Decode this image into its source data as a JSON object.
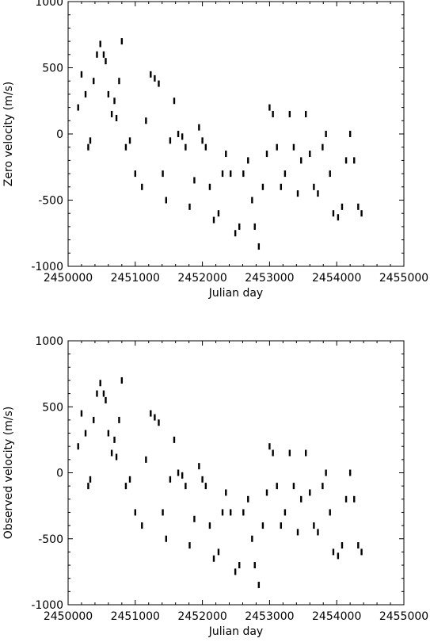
{
  "chart_data": [
    {
      "type": "scatter",
      "xlabel": "Julian day",
      "ylabel": "Zero velocity (m/s)",
      "xlim": [
        2450000,
        2455000
      ],
      "ylim": [
        -1000,
        1000
      ],
      "xticks": [
        "2450000",
        "2451000",
        "2452000",
        "2453000",
        "2454000",
        "2455000"
      ],
      "yticks": [
        "-1000",
        "-500",
        "0",
        "500",
        "1000"
      ],
      "grid": false,
      "legend": "none",
      "marker_color": "#000000",
      "x": [
        2450150,
        2450200,
        2450260,
        2450300,
        2450330,
        2450380,
        2450430,
        2450480,
        2450530,
        2450560,
        2450600,
        2450650,
        2450690,
        2450720,
        2450760,
        2450800,
        2450860,
        2450920,
        2451000,
        2451100,
        2451160,
        2451230,
        2451290,
        2451350,
        2451410,
        2451460,
        2451520,
        2451580,
        2451640,
        2451700,
        2451750,
        2451810,
        2451880,
        2451950,
        2452000,
        2452050,
        2452110,
        2452170,
        2452240,
        2452300,
        2452350,
        2452420,
        2452490,
        2452550,
        2452610,
        2452680,
        2452740,
        2452780,
        2452840,
        2452900,
        2452960,
        2453000,
        2453050,
        2453110,
        2453170,
        2453230,
        2453300,
        2453360,
        2453420,
        2453470,
        2453540,
        2453600,
        2453660,
        2453720,
        2453790,
        2453840,
        2453900,
        2453950,
        2454020,
        2454080,
        2454140,
        2454200,
        2454260,
        2454320,
        2454370
      ],
      "y": [
        200,
        450,
        300,
        -100,
        -50,
        400,
        600,
        680,
        600,
        550,
        300,
        150,
        250,
        120,
        400,
        700,
        -100,
        -50,
        -300,
        -400,
        100,
        450,
        420,
        380,
        -300,
        -500,
        -50,
        250,
        0,
        -20,
        -100,
        -550,
        -350,
        50,
        -50,
        -100,
        -400,
        -650,
        -600,
        -300,
        -150,
        -300,
        -750,
        -700,
        -300,
        -200,
        -500,
        -700,
        -850,
        -400,
        -150,
        200,
        150,
        -100,
        -400,
        -300,
        150,
        -100,
        -450,
        -200,
        150,
        -150,
        -400,
        -450,
        -100,
        0,
        -300,
        -600,
        -630,
        -550,
        -200,
        0,
        -200,
        -550,
        -600
      ]
    },
    {
      "type": "scatter",
      "xlabel": "Julian day",
      "ylabel": "Observed velocity (m/s)",
      "xlim": [
        2450000,
        2455000
      ],
      "ylim": [
        -1000,
        1000
      ],
      "xticks": [
        "2450000",
        "2451000",
        "2452000",
        "2453000",
        "2454000",
        "2455000"
      ],
      "yticks": [
        "-1000",
        "-500",
        "0",
        "500",
        "1000"
      ],
      "grid": false,
      "legend": "none",
      "marker_color": "#000000",
      "x": [
        2450150,
        2450200,
        2450260,
        2450300,
        2450330,
        2450380,
        2450430,
        2450480,
        2450530,
        2450560,
        2450600,
        2450650,
        2450690,
        2450720,
        2450760,
        2450800,
        2450860,
        2450920,
        2451000,
        2451100,
        2451160,
        2451230,
        2451290,
        2451350,
        2451410,
        2451460,
        2451520,
        2451580,
        2451640,
        2451700,
        2451750,
        2451810,
        2451880,
        2451950,
        2452000,
        2452050,
        2452110,
        2452170,
        2452240,
        2452300,
        2452350,
        2452420,
        2452490,
        2452550,
        2452610,
        2452680,
        2452740,
        2452780,
        2452840,
        2452900,
        2452960,
        2453000,
        2453050,
        2453110,
        2453170,
        2453230,
        2453300,
        2453360,
        2453420,
        2453470,
        2453540,
        2453600,
        2453660,
        2453720,
        2453790,
        2453840,
        2453900,
        2453950,
        2454020,
        2454080,
        2454140,
        2454200,
        2454260,
        2454320,
        2454370
      ],
      "y": [
        200,
        450,
        300,
        -100,
        -50,
        400,
        600,
        680,
        600,
        550,
        300,
        150,
        250,
        120,
        400,
        700,
        -100,
        -50,
        -300,
        -400,
        100,
        450,
        420,
        380,
        -300,
        -500,
        -50,
        250,
        0,
        -20,
        -100,
        -550,
        -350,
        50,
        -50,
        -100,
        -400,
        -650,
        -600,
        -300,
        -150,
        -300,
        -750,
        -700,
        -300,
        -200,
        -500,
        -700,
        -850,
        -400,
        -150,
        200,
        150,
        -100,
        -400,
        -300,
        150,
        -100,
        -450,
        -200,
        150,
        -150,
        -400,
        -450,
        -100,
        0,
        -300,
        -600,
        -630,
        -550,
        -200,
        0,
        -200,
        -550,
        -600
      ]
    }
  ]
}
